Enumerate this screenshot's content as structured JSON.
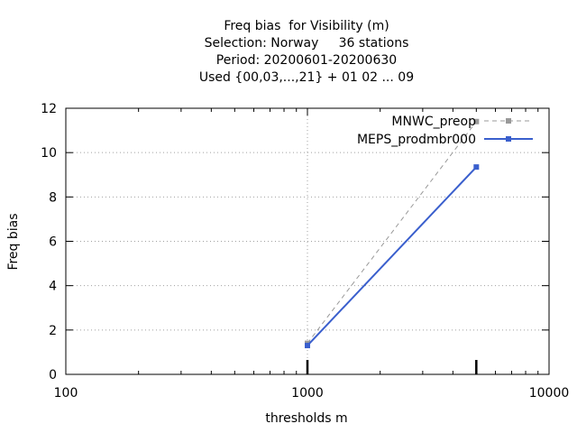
{
  "chart_data": {
    "type": "line",
    "title_lines": [
      "Freq bias  for Visibility (m)",
      "Selection: Norway     36 stations",
      "Period: 20200601-20200630",
      "Used {00,03,...,21} + 01 02 ... 09"
    ],
    "xlabel": "thresholds m",
    "ylabel": "Freq bias",
    "xscale": "log",
    "xlim": [
      100,
      10000
    ],
    "ylim": [
      0,
      12
    ],
    "xticks": [
      100,
      1000,
      10000
    ],
    "xtick_labels": [
      "100",
      "1000",
      "10000"
    ],
    "yticks": [
      0,
      2,
      4,
      6,
      8,
      10,
      12
    ],
    "ytick_labels": [
      "0",
      "2",
      "4",
      "6",
      "8",
      "10",
      "12"
    ],
    "grid": true,
    "legend_position": "top-right",
    "series": [
      {
        "name": "MNWC_preop",
        "x": [
          1000,
          5000
        ],
        "y": [
          1.4,
          11.4
        ],
        "color": "#999999",
        "style": "dashed"
      },
      {
        "name": "MEPS_prodmbr000",
        "x": [
          1000,
          5000
        ],
        "y": [
          1.3,
          9.35
        ],
        "color": "#3a5fcd",
        "style": "solid"
      }
    ]
  }
}
